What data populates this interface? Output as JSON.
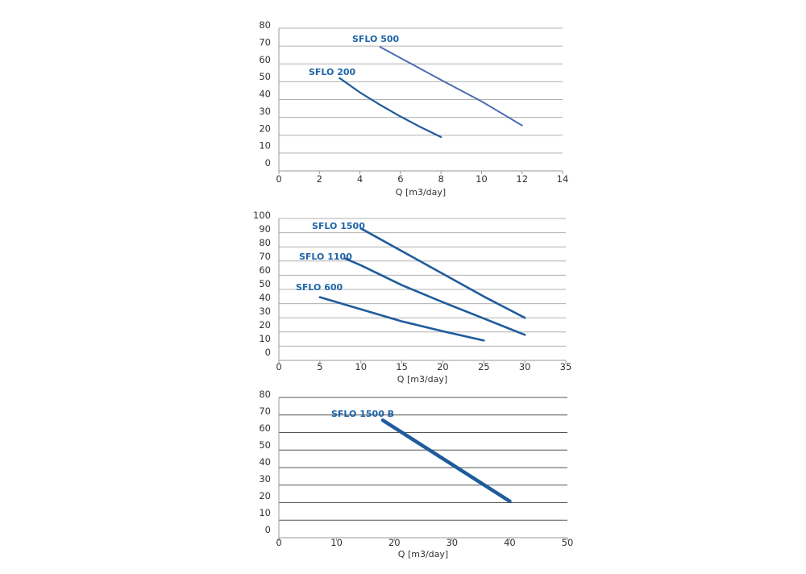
{
  "chart_data": [
    {
      "type": "line",
      "title": "",
      "xlabel": "Q [m3/day]",
      "ylabel": "",
      "xlim": [
        0,
        14
      ],
      "ylim": [
        0,
        80
      ],
      "xticks": [
        "0",
        "2",
        "4",
        "6",
        "8",
        "10",
        "12",
        "14"
      ],
      "yticks": [
        "80",
        "70",
        "60",
        "50",
        "40",
        "30",
        "20",
        "10",
        "0"
      ],
      "grid": true,
      "series": [
        {
          "name": "SFLO 500",
          "color": "#4a6db3",
          "x": [
            5,
            8,
            10,
            12
          ],
          "y": [
            69.5,
            51,
            39,
            25.5
          ]
        },
        {
          "name": "SFLO 200",
          "color": "#1f5b9c",
          "x": [
            3,
            4,
            5,
            6,
            7,
            8
          ],
          "y": [
            52,
            44,
            37,
            30.5,
            24.5,
            19
          ]
        }
      ]
    },
    {
      "type": "line",
      "title": "",
      "xlabel": "Q [m3/day]",
      "ylabel": "",
      "xlim": [
        0,
        35
      ],
      "ylim": [
        0,
        100
      ],
      "xticks": [
        "0",
        "5",
        "10",
        "15",
        "20",
        "25",
        "30",
        "35"
      ],
      "yticks": [
        "100",
        "90",
        "80",
        "70",
        "60",
        "50",
        "40",
        "30",
        "20",
        "10",
        "0"
      ],
      "grid": true,
      "series": [
        {
          "name": "SFLO 1500",
          "color": "#1f5b9c",
          "x": [
            10,
            15,
            20,
            25,
            30
          ],
          "y": [
            93,
            77,
            61,
            45,
            30
          ]
        },
        {
          "name": "SFLO 1100",
          "color": "#1f5b9c",
          "x": [
            8,
            10,
            15,
            20,
            25,
            30
          ],
          "y": [
            72,
            67,
            53,
            41,
            29.5,
            18
          ]
        },
        {
          "name": "SFLO 600",
          "color": "#1f5b9c",
          "x": [
            5,
            10,
            15,
            20,
            25
          ],
          "y": [
            44.5,
            36,
            27.5,
            20.5,
            14
          ]
        }
      ]
    },
    {
      "type": "line",
      "title": "",
      "xlabel": "Q [m3/day]",
      "ylabel": "",
      "xlim": [
        0,
        50
      ],
      "ylim": [
        0,
        80
      ],
      "xticks": [
        "0",
        "10",
        "20",
        "30",
        "40",
        "50"
      ],
      "yticks": [
        "80",
        "70",
        "60",
        "50",
        "40",
        "30",
        "20",
        "10",
        "0"
      ],
      "grid": true,
      "series": [
        {
          "name": "SFLO 1500 B",
          "color": "#1f5b9c",
          "x": [
            18,
            40
          ],
          "y": [
            67,
            20.8
          ]
        }
      ]
    }
  ]
}
